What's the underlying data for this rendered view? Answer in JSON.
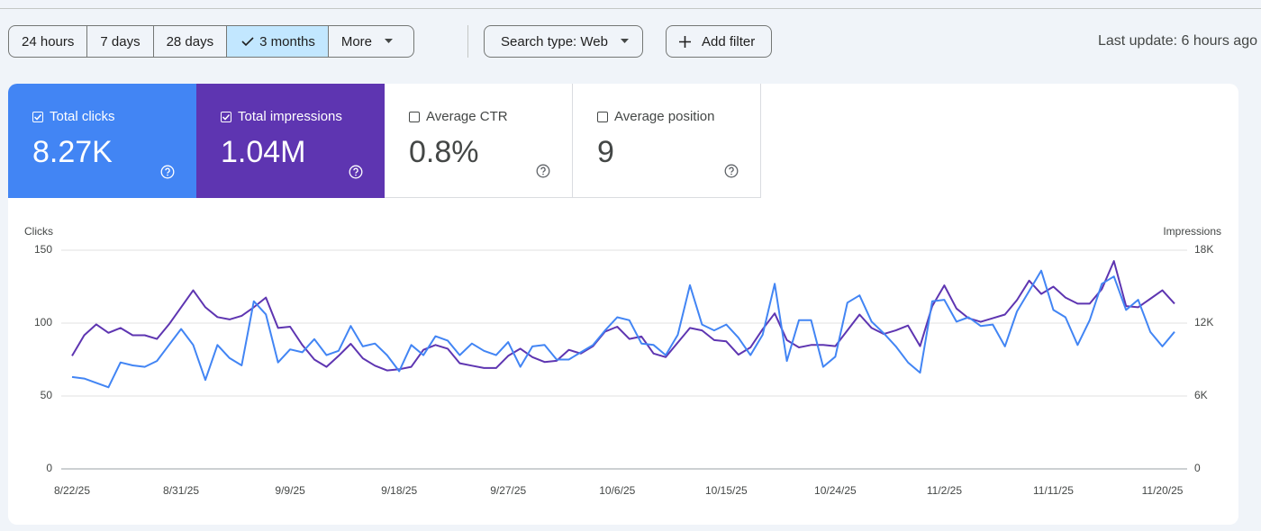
{
  "toolbar": {
    "ranges": [
      "24 hours",
      "7 days",
      "28 days",
      "3 months",
      "More"
    ],
    "search_type": "Search type: Web",
    "add_filter": "Add filter",
    "last_update": "Last update: 6 hours ago"
  },
  "metrics": [
    {
      "label": "Total clicks",
      "value": "8.27K",
      "checked": true,
      "color": "#4285f4"
    },
    {
      "label": "Total impressions",
      "value": "1.04M",
      "checked": true,
      "color": "#5e35b1"
    },
    {
      "label": "Average CTR",
      "value": "0.8%",
      "checked": false
    },
    {
      "label": "Average position",
      "value": "9",
      "checked": false
    }
  ],
  "chart_data": {
    "type": "line",
    "y_label": "Clicks",
    "y2_label": "Impressions",
    "categories": [
      "8/22/25",
      null,
      null,
      null,
      null,
      null,
      null,
      null,
      null,
      "8/31/25",
      null,
      null,
      null,
      null,
      null,
      null,
      null,
      null,
      "9/9/25",
      null,
      null,
      null,
      null,
      null,
      null,
      null,
      null,
      "9/18/25",
      null,
      null,
      null,
      null,
      null,
      null,
      null,
      null,
      "9/27/25",
      null,
      null,
      null,
      null,
      null,
      null,
      null,
      null,
      "10/6/25",
      null,
      null,
      null,
      null,
      null,
      null,
      null,
      null,
      "10/15/25",
      null,
      null,
      null,
      null,
      null,
      null,
      null,
      null,
      "10/24/25",
      null,
      null,
      null,
      null,
      null,
      null,
      null,
      null,
      "11/2/25",
      null,
      null,
      null,
      null,
      null,
      null,
      null,
      null,
      "11/11/25",
      null,
      null,
      null,
      null,
      null,
      null,
      null,
      null,
      "11/20/25",
      null
    ],
    "series": [
      {
        "color": "#4285f4",
        "values": [
          63,
          62,
          59,
          56,
          73,
          71,
          70,
          74,
          85,
          96,
          85,
          61,
          85,
          76,
          71,
          115,
          106,
          73,
          82,
          80,
          89,
          78,
          81,
          98,
          84,
          86,
          78,
          67,
          85,
          78,
          91,
          88,
          78,
          86,
          81,
          78,
          87,
          70,
          84,
          85,
          75,
          75,
          80,
          85,
          95,
          104,
          102,
          86,
          85,
          78,
          92,
          126,
          99,
          95,
          99,
          90,
          78,
          92,
          127,
          74,
          102,
          102,
          70,
          77,
          114,
          119,
          101,
          93,
          84,
          73,
          66,
          115,
          116,
          101,
          104,
          98,
          99,
          84,
          108,
          122,
          136,
          109,
          104,
          85,
          102,
          127,
          132,
          109,
          116,
          94,
          84,
          94
        ]
      },
      {
        "color": "#5e35b1",
        "axis": "y2",
        "values": [
          9300,
          11000,
          11900,
          11200,
          11600,
          11000,
          11000,
          10700,
          11900,
          13300,
          14700,
          13300,
          12500,
          12300,
          12600,
          13300,
          14100,
          11600,
          11700,
          10200,
          9000,
          8400,
          9300,
          10300,
          9100,
          8500,
          8100,
          8200,
          8400,
          9800,
          10200,
          9900,
          8700,
          8500,
          8300,
          8300,
          9300,
          9900,
          9200,
          8800,
          8900,
          9800,
          9500,
          10100,
          11300,
          11700,
          10700,
          10900,
          9500,
          9200,
          10400,
          11600,
          11400,
          10600,
          10500,
          9400,
          10000,
          11500,
          12800,
          10600,
          10000,
          10200,
          10200,
          10100,
          11400,
          12700,
          11600,
          11100,
          11400,
          11800,
          10100,
          13400,
          15100,
          13200,
          12400,
          12100,
          12400,
          12700,
          13900,
          15500,
          14400,
          15000,
          14100,
          13600,
          13600,
          14800,
          17100,
          13400,
          13300,
          14000,
          14700,
          13600
        ]
      }
    ],
    "ylim": [
      0,
      150
    ],
    "yticks": [
      0,
      50,
      100,
      150
    ],
    "y2lim": [
      0,
      18000
    ],
    "y2ticks": [
      0,
      {
        "value": 6000,
        "label": "6K"
      },
      {
        "value": 12000,
        "label": "12K"
      },
      {
        "value": 18000,
        "label": "18K"
      }
    ],
    "grid": true
  }
}
